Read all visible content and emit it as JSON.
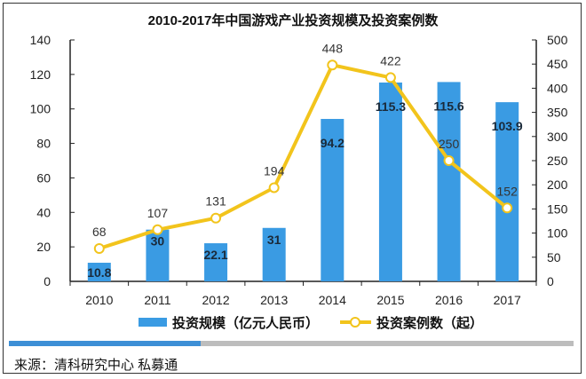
{
  "chart_data": {
    "type": "bar+line",
    "title": "2010-2017年中国游戏产业投资规模及投资案例数",
    "categories": [
      "2010",
      "2011",
      "2012",
      "2013",
      "2014",
      "2015",
      "2016",
      "2017"
    ],
    "series": [
      {
        "name": "投资规模（亿元人民币）",
        "type": "bar",
        "axis": "left",
        "color": "#3a9be3",
        "values": [
          10.8,
          30,
          22.1,
          31,
          94.2,
          115.3,
          115.6,
          103.9
        ]
      },
      {
        "name": "投资案例数（起）",
        "type": "line",
        "axis": "right",
        "color": "#f2c41c",
        "values": [
          68,
          107,
          131,
          194,
          448,
          422,
          250,
          152
        ]
      }
    ],
    "left_axis": {
      "range": [
        0,
        140
      ],
      "ticks": [
        0,
        20,
        40,
        60,
        80,
        100,
        120,
        140
      ]
    },
    "right_axis": {
      "range": [
        0,
        500
      ],
      "ticks": [
        0,
        50,
        100,
        150,
        200,
        250,
        300,
        350,
        400,
        450,
        500
      ]
    },
    "grid": false,
    "legend_position": "bottom"
  },
  "progress": {
    "percent": 34,
    "color": "#3d8fd6"
  },
  "source": "来源：清科研究中心  私募通"
}
